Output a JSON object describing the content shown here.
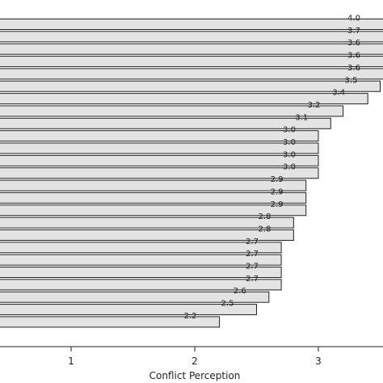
{
  "chart_data": {
    "type": "bar",
    "orientation": "horizontal",
    "values": [
      4.0,
      3.7,
      3.6,
      3.6,
      3.6,
      3.5,
      3.4,
      3.2,
      3.1,
      3.0,
      3.0,
      3.0,
      3.0,
      2.9,
      2.9,
      2.9,
      2.8,
      2.8,
      2.7,
      2.7,
      2.7,
      2.7,
      2.6,
      2.5,
      2.2
    ],
    "value_labels": [
      "4.0",
      "3.7",
      "3.6",
      "3.6",
      "3.6",
      "3.5",
      "3.4",
      "3.2",
      "3.1",
      "3.0",
      "3.0",
      "3.0",
      "3.0",
      "2.9",
      "2.9",
      "2.9",
      "2.8",
      "2.8",
      "2.7",
      "2.7",
      "2.7",
      "2.7",
      "2.6",
      "2.5",
      "2.2"
    ],
    "xlabel": "Conflict Perception",
    "x_ticks": [
      1,
      2,
      3
    ],
    "x_tick_labels": [
      "1",
      "2",
      "3"
    ],
    "xlim": [
      0.45,
      3.45
    ],
    "grid": false,
    "colors": {
      "bar_fill": "#e3e3e3",
      "bar_stroke": "#222222",
      "text": "#222222"
    }
  }
}
